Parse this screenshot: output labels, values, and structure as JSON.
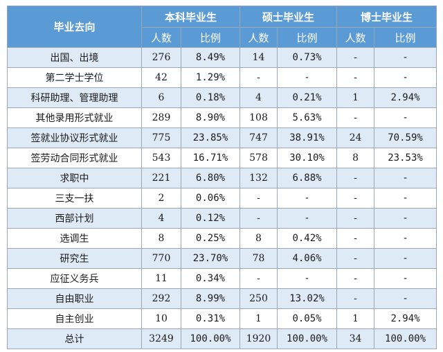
{
  "header": {
    "category_label": "毕业去向",
    "groups": [
      "本科毕业生",
      "硕士毕业生",
      "博士毕业生"
    ],
    "subheaders": [
      "人数",
      "比例",
      "人数",
      "比例",
      "人数",
      "比例"
    ]
  },
  "rows": [
    {
      "label": "出国、出境",
      "cells": [
        "276",
        "8.49%",
        "14",
        "0.73%",
        "-",
        "-"
      ]
    },
    {
      "label": "第二学士学位",
      "cells": [
        "42",
        "1.29%",
        "-",
        "-",
        "-",
        "-"
      ]
    },
    {
      "label": "科研助理、管理助理",
      "cells": [
        "6",
        "0.18%",
        "4",
        "0.21%",
        "1",
        "2.94%"
      ]
    },
    {
      "label": "其他录用形式就业",
      "cells": [
        "289",
        "8.90%",
        "108",
        "5.63%",
        "-",
        "-"
      ]
    },
    {
      "label": "签就业协议形式就业",
      "cells": [
        "775",
        "23.85%",
        "747",
        "38.91%",
        "24",
        "70.59%"
      ]
    },
    {
      "label": "签劳动合同形式就业",
      "cells": [
        "543",
        "16.71%",
        "578",
        "30.10%",
        "8",
        "23.53%"
      ]
    },
    {
      "label": "求职中",
      "cells": [
        "221",
        "6.80%",
        "132",
        "6.88%",
        "-",
        "-"
      ]
    },
    {
      "label": "三支一扶",
      "cells": [
        "2",
        "0.06%",
        "-",
        "-",
        "-",
        "-"
      ]
    },
    {
      "label": "西部计划",
      "cells": [
        "4",
        "0.12%",
        "-",
        "-",
        "-",
        "-"
      ]
    },
    {
      "label": "选调生",
      "cells": [
        "8",
        "0.25%",
        "8",
        "0.42%",
        "-",
        "-"
      ]
    },
    {
      "label": "研究生",
      "cells": [
        "770",
        "23.70%",
        "78",
        "4.06%",
        "-",
        "-"
      ]
    },
    {
      "label": "应征义务兵",
      "cells": [
        "11",
        "0.34%",
        "-",
        "-",
        "-",
        "-"
      ]
    },
    {
      "label": "自由职业",
      "cells": [
        "292",
        "8.99%",
        "250",
        "13.02%",
        "-",
        "-"
      ]
    },
    {
      "label": "自主创业",
      "cells": [
        "10",
        "0.31%",
        "1",
        "0.05%",
        "1",
        "2.94%"
      ]
    },
    {
      "label": "总计",
      "cells": [
        "3249",
        "100.00%",
        "1920",
        "100.00%",
        "34",
        "100.00%"
      ]
    }
  ]
}
